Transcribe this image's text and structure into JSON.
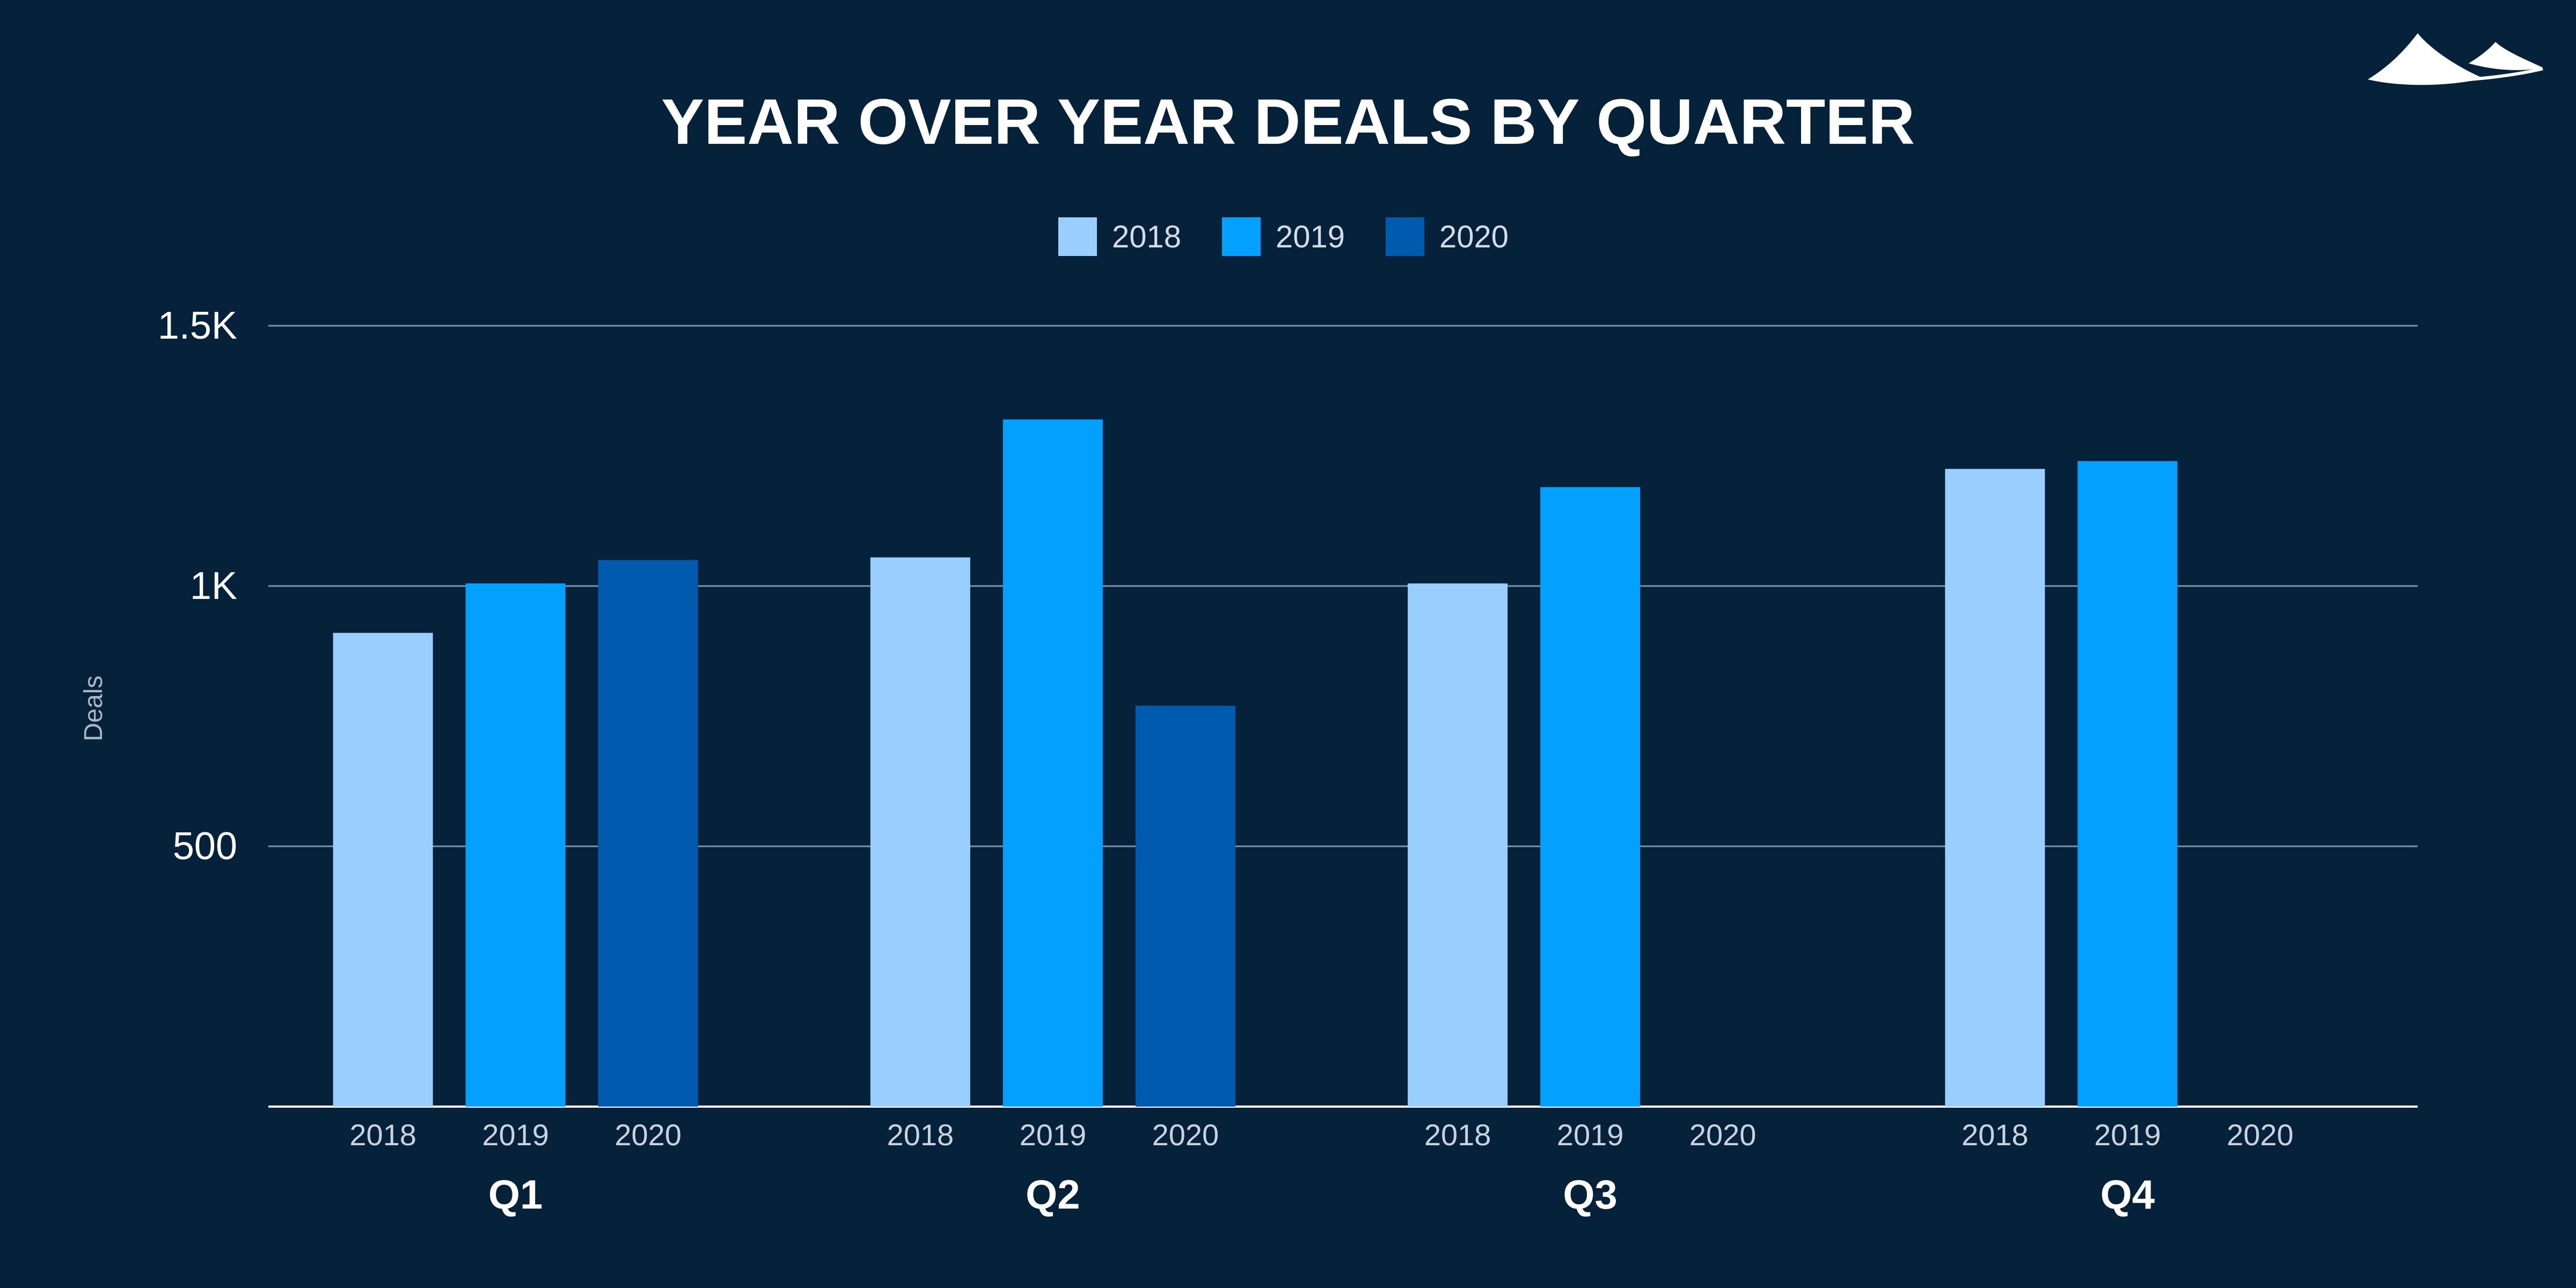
{
  "chart_data": {
    "type": "bar",
    "title": "YEAR OVER YEAR DEALS BY QUARTER",
    "xlabel": "",
    "ylabel": "Deals",
    "categories": [
      "Q1",
      "Q2",
      "Q3",
      "Q4"
    ],
    "subcategories": [
      "2018",
      "2019",
      "2020"
    ],
    "series": [
      {
        "name": "2018",
        "color": "#99ceff",
        "values": [
          910,
          1055,
          1005,
          1225
        ]
      },
      {
        "name": "2019",
        "color": "#03a0fe",
        "values": [
          1005,
          1320,
          1190,
          1240
        ]
      },
      {
        "name": "2020",
        "color": "#005aad",
        "values": [
          1050,
          770,
          null,
          null
        ]
      }
    ],
    "yticks": [
      {
        "value": 500,
        "label": "500"
      },
      {
        "value": 1000,
        "label": "1K"
      },
      {
        "value": 1500,
        "label": "1.5K"
      }
    ],
    "ylim": [
      0,
      1500
    ],
    "grid": true,
    "legend_position": "top-center"
  },
  "logo": {
    "icon": "mountain-logo-icon"
  }
}
